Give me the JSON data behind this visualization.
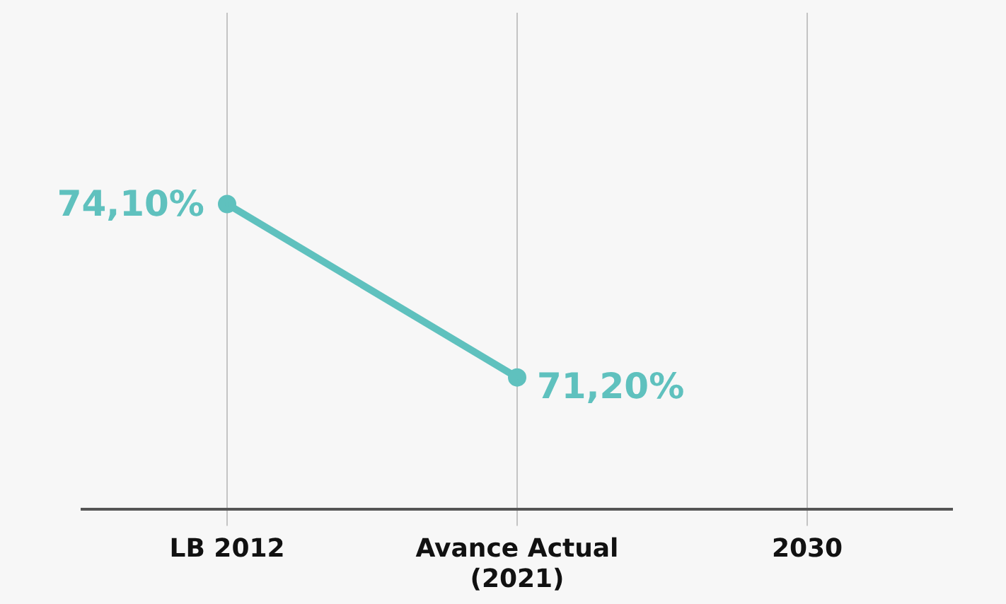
{
  "chart_data": {
    "type": "line",
    "categories": [
      "LB 2012",
      "Avance Actual (2021)",
      "2030"
    ],
    "series": [
      {
        "color": "#5fc1be",
        "values": [
          74.1,
          71.2,
          null
        ],
        "value_labels": [
          "74,10%",
          "71,20%",
          null
        ]
      }
    ],
    "ylim": [
      69,
      77.3
    ],
    "grid": "x",
    "legend": false,
    "marker": "circle",
    "line_style": "solid",
    "tick_labels": "x"
  }
}
